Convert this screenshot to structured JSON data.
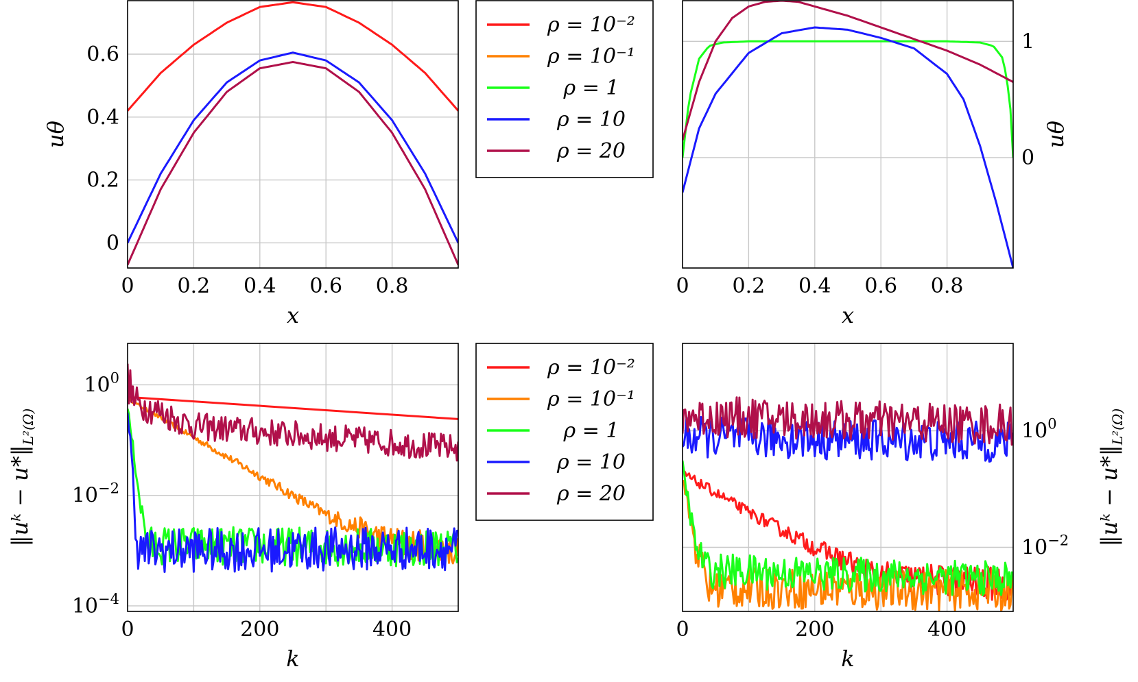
{
  "colors": {
    "r001": "#ff1a1a",
    "r01": "#ff8000",
    "r1": "#1aff1a",
    "r10": "#1a1aff",
    "r20": "#b0104a"
  },
  "legend": {
    "entries": [
      {
        "key": "r001",
        "label": "ρ = 10⁻²"
      },
      {
        "key": "r01",
        "label": "ρ = 10⁻¹"
      },
      {
        "key": "r1",
        "label": "ρ = 1"
      },
      {
        "key": "r10",
        "label": "ρ = 10"
      },
      {
        "key": "r20",
        "label": "ρ = 20"
      }
    ]
  },
  "chart_data": [
    {
      "id": "top-left",
      "type": "line",
      "xlabel": "x",
      "ylabel": "uθ",
      "xlim": [
        0,
        1
      ],
      "ylim": [
        -0.08,
        0.77
      ],
      "xticks": [
        "0",
        "0.2",
        "0.4",
        "0.6",
        "0.8"
      ],
      "yticks": [
        "0",
        "0.2",
        "0.4",
        "0.6"
      ],
      "series": [
        {
          "name": "ρ = 10⁻²",
          "key": "r001",
          "x": [
            0,
            0.1,
            0.2,
            0.3,
            0.4,
            0.5,
            0.6,
            0.7,
            0.8,
            0.9,
            1
          ],
          "y": [
            0.42,
            0.54,
            0.63,
            0.7,
            0.75,
            0.765,
            0.75,
            0.7,
            0.63,
            0.54,
            0.42
          ]
        },
        {
          "name": "ρ = 10",
          "key": "r10",
          "x": [
            0,
            0.1,
            0.2,
            0.3,
            0.4,
            0.5,
            0.6,
            0.7,
            0.8,
            0.9,
            1
          ],
          "y": [
            0.0,
            0.22,
            0.39,
            0.51,
            0.58,
            0.605,
            0.58,
            0.51,
            0.39,
            0.22,
            0.0
          ]
        },
        {
          "name": "ρ = 20",
          "key": "r20",
          "x": [
            0,
            0.1,
            0.2,
            0.3,
            0.4,
            0.5,
            0.6,
            0.7,
            0.8,
            0.9,
            1
          ],
          "y": [
            -0.07,
            0.17,
            0.35,
            0.48,
            0.555,
            0.575,
            0.555,
            0.48,
            0.35,
            0.17,
            -0.07
          ]
        }
      ]
    },
    {
      "id": "top-right",
      "type": "line",
      "xlabel": "x",
      "ylabel": "uθ",
      "xlim": [
        0,
        1
      ],
      "ylim": [
        -0.95,
        1.35
      ],
      "xticks": [
        "0",
        "0.2",
        "0.4",
        "0.6",
        "0.8"
      ],
      "yticks": [
        "0",
        "1"
      ],
      "series": [
        {
          "name": "ρ = 1",
          "key": "r1",
          "x": [
            0,
            0.02,
            0.05,
            0.08,
            0.12,
            0.2,
            0.5,
            0.8,
            0.9,
            0.94,
            0.97,
            0.99,
            1
          ],
          "y": [
            0.0,
            0.5,
            0.85,
            0.96,
            0.99,
            1.0,
            1.0,
            1.0,
            0.99,
            0.96,
            0.85,
            0.5,
            0.0
          ]
        },
        {
          "name": "ρ = 10",
          "key": "r10",
          "x": [
            0,
            0.05,
            0.1,
            0.2,
            0.3,
            0.4,
            0.5,
            0.6,
            0.7,
            0.8,
            0.85,
            0.9,
            0.95,
            1
          ],
          "y": [
            -0.3,
            0.25,
            0.55,
            0.9,
            1.07,
            1.12,
            1.1,
            1.03,
            0.94,
            0.72,
            0.5,
            0.1,
            -0.4,
            -0.95
          ]
        },
        {
          "name": "ρ = 20",
          "key": "r20",
          "x": [
            0,
            0.05,
            0.1,
            0.15,
            0.2,
            0.25,
            0.3,
            0.35,
            0.4,
            0.5,
            0.6,
            0.7,
            0.8,
            0.9,
            1
          ],
          "y": [
            0.15,
            0.65,
            1.0,
            1.2,
            1.3,
            1.34,
            1.35,
            1.34,
            1.3,
            1.22,
            1.12,
            1.02,
            0.92,
            0.8,
            0.65
          ]
        }
      ]
    },
    {
      "id": "bottom-left",
      "type": "line",
      "yscale": "log",
      "xlabel": "k",
      "ylabel": "‖uᵏ − u*‖",
      "ylabel_sub": "L²(Ω)",
      "xlim": [
        0,
        500
      ],
      "ylim_log10": [
        -4.1,
        0.75
      ],
      "xticks": [
        "0",
        "200",
        "400"
      ],
      "yticks": [
        {
          "base": "10",
          "exp": "0"
        },
        {
          "base": "10",
          "exp": "−2"
        },
        {
          "base": "10",
          "exp": "−4"
        }
      ],
      "series": [
        {
          "name": "ρ = 10⁻²",
          "key": "r001",
          "style": "smooth",
          "x": [
            0,
            500
          ],
          "log10y": [
            -0.22,
            -0.62
          ]
        },
        {
          "name": "ρ = 10⁻¹",
          "key": "r01",
          "style": "decay",
          "x": [
            0,
            100,
            200,
            300,
            400,
            500
          ],
          "log10y": [
            -0.25,
            -0.95,
            -1.65,
            -2.35,
            -2.85,
            -3.0
          ],
          "noise": [
            0.02,
            0.05,
            0.08,
            0.12,
            0.3,
            0.3
          ]
        },
        {
          "name": "ρ = 20",
          "key": "r20",
          "style": "noisy",
          "x": [
            0,
            10,
            100,
            250,
            500
          ],
          "log10y": [
            0.1,
            -0.3,
            -0.75,
            -0.9,
            -1.15
          ],
          "noise": [
            0.4,
            0.3,
            0.25,
            0.25,
            0.25
          ]
        },
        {
          "name": "ρ = 1",
          "key": "r1",
          "style": "noisy",
          "x": [
            0,
            20,
            30,
            500
          ],
          "log10y": [
            -0.4,
            -2.2,
            -2.9,
            -2.95
          ],
          "noise": [
            0.05,
            0.2,
            0.35,
            0.35
          ]
        },
        {
          "name": "ρ = 10",
          "key": "r10",
          "style": "noisy",
          "x": [
            0,
            5,
            15,
            30,
            500
          ],
          "log10y": [
            -0.5,
            -1.2,
            -3.0,
            -3.0,
            -2.95
          ],
          "noise": [
            0.1,
            0.3,
            0.35,
            0.4,
            0.4
          ]
        }
      ]
    },
    {
      "id": "bottom-right",
      "type": "line",
      "yscale": "log",
      "xlabel": "k",
      "ylabel": "‖uᵏ − u*‖",
      "ylabel_sub": "L²(Ω)",
      "xlim": [
        0,
        500
      ],
      "ylim_log10": [
        -3.1,
        1.5
      ],
      "xticks": [
        "0",
        "200",
        "400"
      ],
      "yticks": [
        {
          "base": "10",
          "exp": "0"
        },
        {
          "base": "10",
          "exp": "−2"
        }
      ],
      "series": [
        {
          "name": "ρ = 10⁻²",
          "key": "r001",
          "style": "noisy",
          "x": [
            0,
            10,
            100,
            200,
            300,
            500
          ],
          "log10y": [
            -0.7,
            -0.8,
            -1.4,
            -2.0,
            -2.5,
            -2.65
          ],
          "noise": [
            0.05,
            0.08,
            0.1,
            0.15,
            0.25,
            0.3
          ]
        },
        {
          "name": "ρ = 10⁻¹",
          "key": "r01",
          "style": "noisy",
          "x": [
            0,
            20,
            40,
            500
          ],
          "log10y": [
            -0.8,
            -2.0,
            -2.7,
            -2.75
          ],
          "noise": [
            0.1,
            0.3,
            0.35,
            0.35
          ]
        },
        {
          "name": "ρ = 1",
          "key": "r1",
          "style": "noisy",
          "x": [
            0,
            20,
            40,
            500
          ],
          "log10y": [
            -0.6,
            -2.0,
            -2.4,
            -2.55
          ],
          "noise": [
            0.1,
            0.25,
            0.3,
            0.3
          ]
        },
        {
          "name": "ρ = 10",
          "key": "r10",
          "style": "noisy",
          "x": [
            0,
            500
          ],
          "log10y": [
            -0.1,
            -0.2
          ],
          "noise": [
            0.35,
            0.35
          ]
        },
        {
          "name": "ρ = 20",
          "key": "r20",
          "style": "noisy",
          "x": [
            0,
            500
          ],
          "log10y": [
            0.25,
            0.1
          ],
          "noise": [
            0.35,
            0.35
          ]
        }
      ]
    }
  ]
}
